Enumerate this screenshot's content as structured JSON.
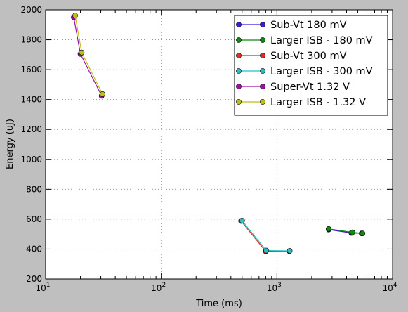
{
  "chart_data": {
    "type": "line",
    "xscale": "log",
    "xlabel": "Time (ms)",
    "ylabel": "Energy (uJ)",
    "xlim": [
      10,
      10000
    ],
    "ylim": [
      200,
      2000
    ],
    "grid": true,
    "legend_position": "top-right",
    "x_ticks": [
      {
        "value": 10,
        "base": "10",
        "exp": "1"
      },
      {
        "value": 100,
        "base": "10",
        "exp": "2"
      },
      {
        "value": 1000,
        "base": "10",
        "exp": "3"
      },
      {
        "value": 10000,
        "base": "10",
        "exp": "4"
      }
    ],
    "y_ticks": [
      "200",
      "400",
      "600",
      "800",
      "1000",
      "1200",
      "1400",
      "1600",
      "1800",
      "2000"
    ],
    "series": [
      {
        "name": "Sub-Vt 180 mV",
        "color": "#3d1ad8",
        "x": [
          2800,
          4400,
          5400
        ],
        "y": [
          530,
          508,
          505
        ]
      },
      {
        "name": "Larger ISB - 180 mV",
        "color": "#118811",
        "x": [
          2800,
          4500,
          5500
        ],
        "y": [
          535,
          512,
          505
        ]
      },
      {
        "name": "Sub-Vt 300 mV",
        "color": "#e22a1e",
        "x": [
          490,
          800,
          1280
        ],
        "y": [
          588,
          385,
          386
        ]
      },
      {
        "name": "Larger ISB - 300 mV",
        "color": "#27bfbf",
        "x": [
          500,
          810,
          1290
        ],
        "y": [
          590,
          390,
          388
        ]
      },
      {
        "name": "Super-Vt 1.32 V",
        "color": "#a010a0",
        "x": [
          17.5,
          20.0,
          30.5
        ],
        "y": [
          1950,
          1705,
          1425
        ]
      },
      {
        "name": "Larger ISB - 1.32 V",
        "color": "#bdbd1a",
        "x": [
          18.0,
          20.5,
          31.0
        ],
        "y": [
          1962,
          1715,
          1437
        ]
      }
    ]
  }
}
